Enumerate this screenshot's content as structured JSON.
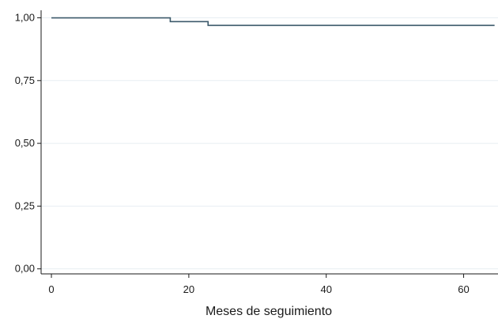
{
  "chart_data": {
    "type": "line",
    "subtype": "step",
    "title": "",
    "xlabel": "Meses de seguimiento",
    "ylabel": "",
    "xlim": [
      -1.5,
      65
    ],
    "ylim": [
      -0.02,
      1.03
    ],
    "grid": "horizontal",
    "x_ticks": [
      {
        "value": 0,
        "label": "0"
      },
      {
        "value": 20,
        "label": "20"
      },
      {
        "value": 40,
        "label": "40"
      },
      {
        "value": 60,
        "label": "60"
      }
    ],
    "y_ticks": [
      {
        "value": 0,
        "label": "0,00"
      },
      {
        "value": 0.25,
        "label": "0,25"
      },
      {
        "value": 0.5,
        "label": "0,50"
      },
      {
        "value": 0.75,
        "label": "0,75"
      },
      {
        "value": 1,
        "label": "1,00"
      }
    ],
    "series": [
      {
        "color": "#3c5a6b",
        "x": [
          0,
          17.3,
          22.8,
          64.5
        ],
        "y": [
          1.0,
          0.985,
          0.97,
          0.97
        ]
      }
    ]
  }
}
